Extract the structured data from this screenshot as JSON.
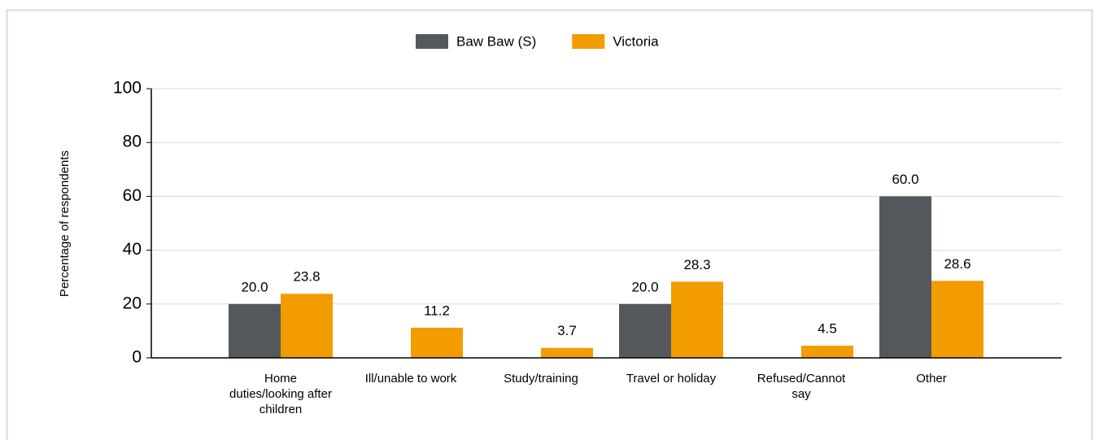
{
  "chart_data": {
    "type": "bar",
    "y_label": "Percentage of respondents",
    "categories": [
      "Home duties/looking after children",
      "Ill/unable to work",
      "Study/training",
      "Travel or holiday",
      "Refused/Cannot say",
      "Other"
    ],
    "series": [
      {
        "name": "Baw Baw (S)",
        "color": "#54575b",
        "values": [
          20,
          null,
          null,
          20,
          null,
          60
        ],
        "value_labels": [
          "20.0",
          null,
          null,
          "20.0",
          null,
          "60.0"
        ]
      },
      {
        "name": "Victoria",
        "color": "#f39c00",
        "values": [
          23.8,
          11.2,
          3.7,
          28.3,
          4.5,
          28.6
        ]
      }
    ],
    "ylim": [
      0,
      100
    ],
    "yticks": [
      0,
      20,
      40,
      60,
      80,
      100
    ],
    "grid": true,
    "legend": "top"
  }
}
